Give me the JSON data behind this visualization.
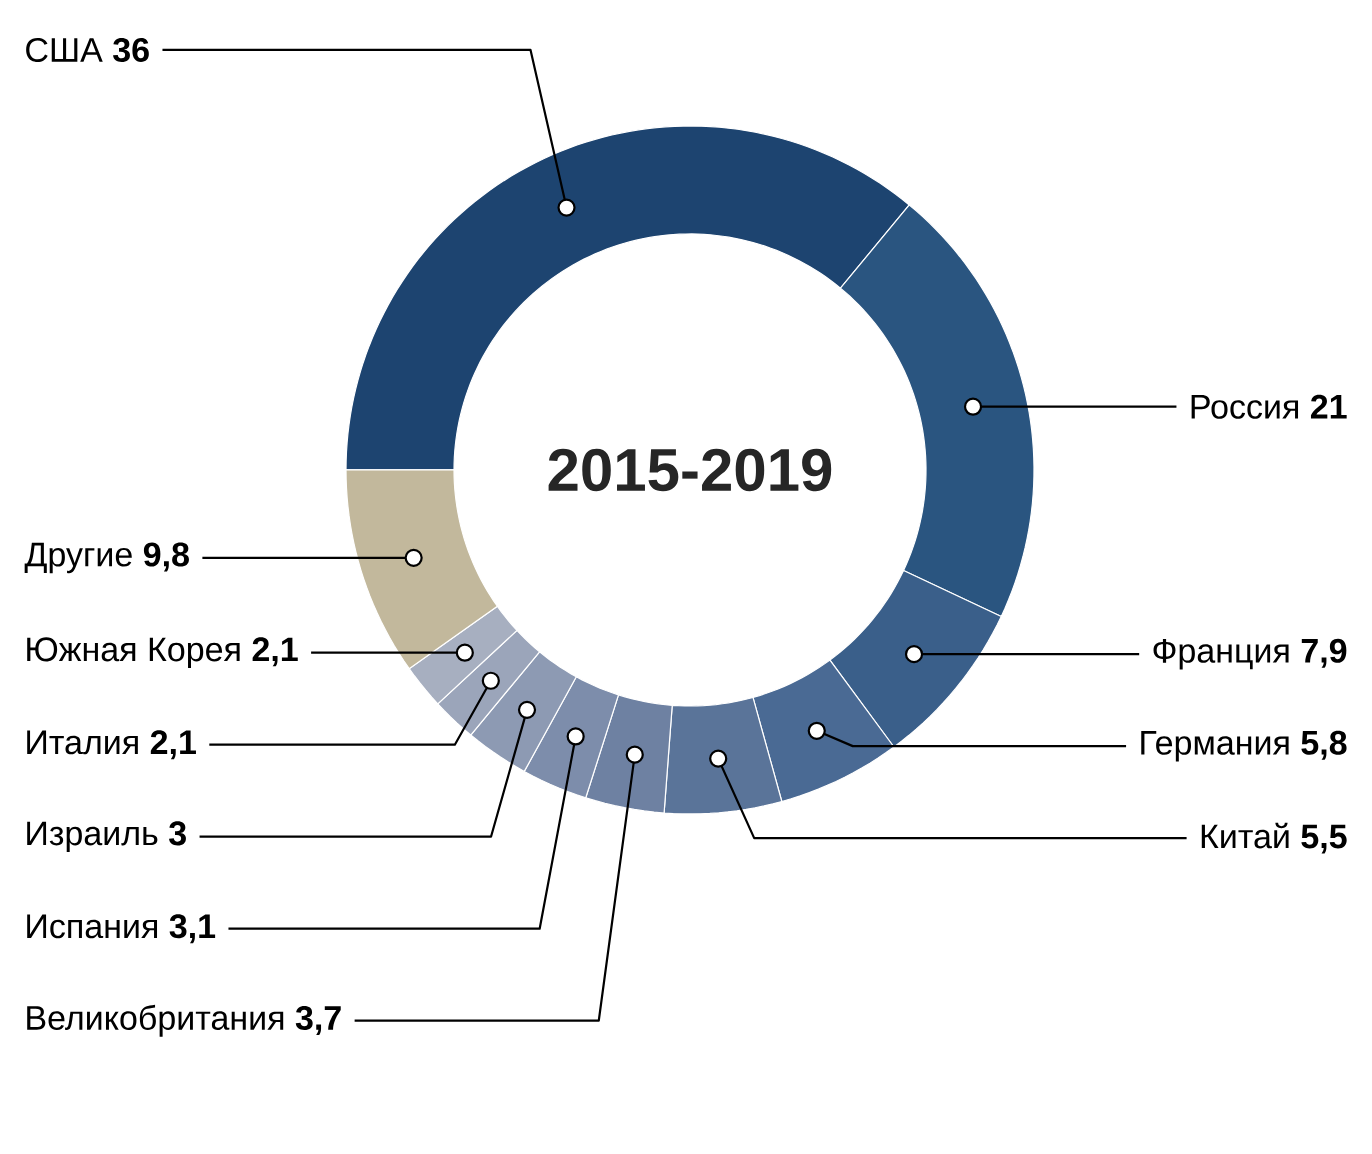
{
  "chart_data": {
    "type": "donut",
    "title": "2015-2019",
    "categories": [
      "США",
      "Россия",
      "Франция",
      "Германия",
      "Китай",
      "Великобритания",
      "Испания",
      "Израиль",
      "Италия",
      "Южная Корея",
      "Другие"
    ],
    "values": [
      36,
      21,
      7.9,
      5.8,
      5.5,
      3.7,
      3.1,
      3,
      2.1,
      2.1,
      9.8
    ],
    "value_labels": [
      "36",
      "21",
      "7,9",
      "5,8",
      "5,5",
      "3,7",
      "3,1",
      "3",
      "2,1",
      "2,1",
      "9,8"
    ],
    "colors": [
      "#1d4470",
      "#2a5580",
      "#3a5f8a",
      "#4a6a94",
      "#5a7499",
      "#6e81a2",
      "#7d8dab",
      "#8d9ab3",
      "#9ba5ba",
      "#a7afc0",
      "#c2b89c"
    ]
  }
}
